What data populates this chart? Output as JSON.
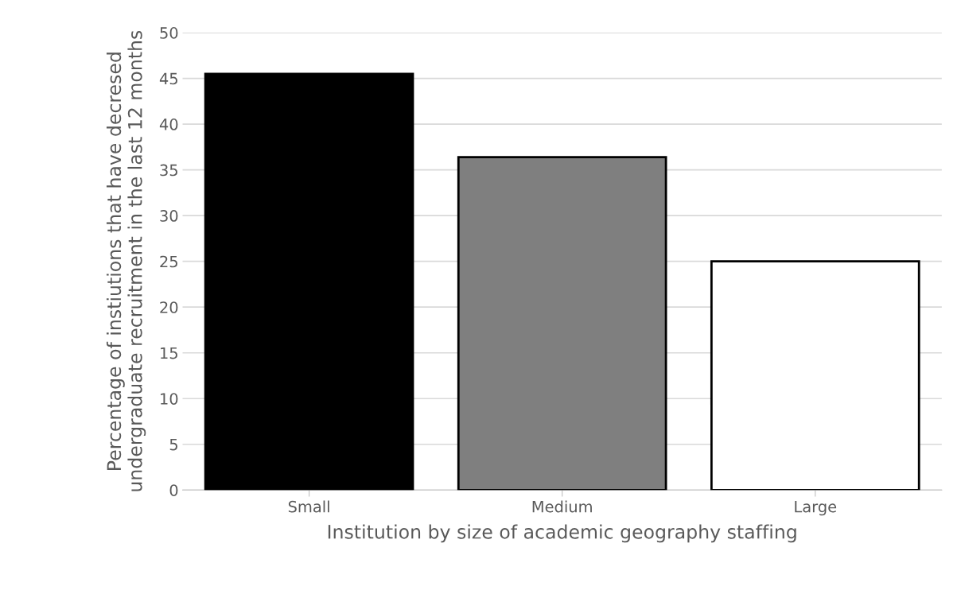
{
  "chart_data": {
    "type": "bar",
    "xlabel": "Institution by size of academic geography staffing",
    "ylabel": "Percentage of instiutions that have decresed undergraduate recruitment in the last 12 months",
    "categories": [
      "Small",
      "Medium",
      "Large"
    ],
    "values": [
      45.5,
      36.4,
      25.0
    ],
    "colors": [
      "#000000",
      "#7f7f7f",
      "#ffffff"
    ],
    "ylim": [
      0,
      50
    ],
    "yticks": [
      0,
      5,
      10,
      15,
      20,
      25,
      30,
      35,
      40,
      45,
      50
    ],
    "grid": "y",
    "legend": false
  }
}
